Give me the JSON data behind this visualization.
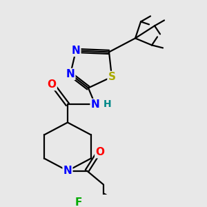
{
  "background_color": "#e8e8e8",
  "bond_color": "#000000",
  "atom_colors": {
    "N": "#0000ff",
    "O": "#ff0000",
    "S": "#aaaa00",
    "F": "#00aa00",
    "H": "#008888",
    "C": "#000000"
  },
  "font_size": 10,
  "lw": 1.6
}
